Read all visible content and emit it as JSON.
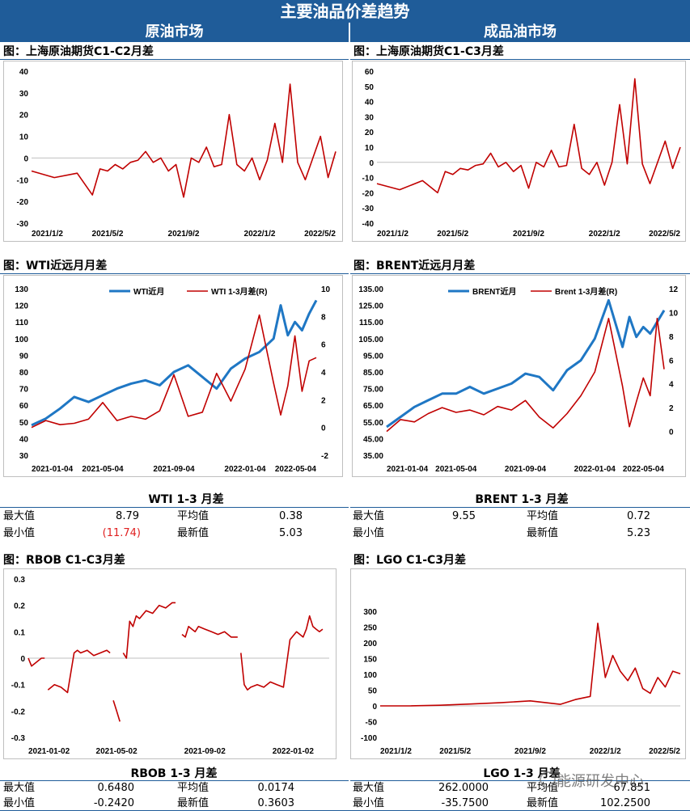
{
  "header": {
    "title": "主要油品价差趋势",
    "left_market": "原油市场",
    "right_market": "成品油市场"
  },
  "colors": {
    "red": "#c00000",
    "blue": "#1f77c4",
    "header_bg": "#1f5c99"
  },
  "sections": {
    "c1c2": {
      "title": "图：上海原油期货C1-C2月差"
    },
    "c1c3": {
      "title": "图：上海原油期货C1-C3月差"
    },
    "wti": {
      "title": "图：WTI近远月月差"
    },
    "brent": {
      "title": "图：BRENT近远月月差"
    },
    "rbob": {
      "title": "图：RBOB C1-C3月差"
    },
    "lgo": {
      "title": "图：LGO C1-C3月差"
    }
  },
  "stats": {
    "wti": {
      "title": "WTI 1-3 月差",
      "max_label": "最大值",
      "max": "8.79",
      "avg_label": "平均值",
      "avg": "0.38",
      "min_label": "最小值",
      "min": "(11.74)",
      "latest_label": "最新值",
      "latest": "5.03"
    },
    "brent": {
      "title": "BRENT 1-3 月差",
      "max_label": "最大值",
      "max": "9.55",
      "avg_label": "平均值",
      "avg": "0.72",
      "min_label": "最小值",
      "min": "",
      "latest_label": "最新值",
      "latest": "5.23"
    },
    "rbob": {
      "title": "RBOB 1-3 月差",
      "max_label": "最大值",
      "max": "0.6480",
      "avg_label": "平均值",
      "avg": "0.0174",
      "min_label": "最小值",
      "min": "-0.2420",
      "latest_label": "最新值",
      "latest": "0.3603"
    },
    "lgo": {
      "title": "LGO 1-3 月差",
      "max_label": "最大值",
      "max": "262.0000",
      "avg_label": "平均值",
      "avg": "67.851",
      "min_label": "最小值",
      "min": "-35.7500",
      "latest_label": "最新值",
      "latest": "102.2500"
    }
  },
  "watermark": {
    "text": "能源研发中心"
  },
  "chart_data": [
    {
      "id": "c1c2",
      "type": "line",
      "title": "图：上海原油期货C1-C2月差",
      "ylim": [
        -30,
        40
      ],
      "yticks": [
        40,
        30,
        20,
        10,
        0,
        -10,
        -20,
        -30
      ],
      "xticks": [
        "2021/1/2",
        "2021/5/2",
        "2021/9/2",
        "2022/1/2",
        "2022/5/2"
      ],
      "series": [
        {
          "color": "#c00000",
          "x": [
            0,
            3,
            6,
            8,
            9,
            10,
            11,
            12,
            13,
            14,
            15,
            16,
            17,
            18,
            19,
            20,
            21,
            22,
            23,
            24,
            25,
            26,
            27,
            28,
            29,
            30,
            31,
            32,
            33,
            34,
            35,
            36,
            37,
            38,
            39,
            40
          ],
          "y": [
            -6,
            -9,
            -7,
            -17,
            -5,
            -6,
            -3,
            -5,
            -2,
            -1,
            3,
            -2,
            0,
            -6,
            -3,
            -18,
            0,
            -2,
            5,
            -4,
            -3,
            20,
            -3,
            -6,
            0,
            -10,
            -1,
            16,
            -2,
            34,
            -2,
            -10,
            0,
            10,
            -9,
            3
          ]
        }
      ]
    },
    {
      "id": "c1c3",
      "type": "line",
      "title": "图：上海原油期货C1-C3月差",
      "ylim": [
        -40,
        60
      ],
      "yticks": [
        60,
        50,
        40,
        30,
        20,
        10,
        0,
        -10,
        -20,
        -30,
        -40
      ],
      "xticks": [
        "2021/1/2",
        "2021/5/2",
        "2021/9/2",
        "2022/1/2",
        "2022/5/2"
      ],
      "series": [
        {
          "color": "#c00000",
          "x": [
            0,
            3,
            6,
            8,
            9,
            10,
            11,
            12,
            13,
            14,
            15,
            16,
            17,
            18,
            19,
            20,
            21,
            22,
            23,
            24,
            25,
            26,
            27,
            28,
            29,
            30,
            31,
            32,
            33,
            34,
            35,
            36,
            37,
            38,
            39,
            40
          ],
          "y": [
            -14,
            -18,
            -12,
            -20,
            -6,
            -8,
            -4,
            -5,
            -2,
            -1,
            6,
            -3,
            0,
            -6,
            -2,
            -17,
            0,
            -3,
            8,
            -3,
            -2,
            25,
            -4,
            -8,
            0,
            -15,
            0,
            38,
            -1,
            55,
            -1,
            -14,
            0,
            14,
            -4,
            10
          ]
        }
      ]
    },
    {
      "id": "wti",
      "type": "line",
      "dual_axis": true,
      "title": "图：WTI近远月月差",
      "ylim": [
        30,
        130
      ],
      "yticks": [
        130,
        120,
        110,
        100,
        90,
        80,
        70,
        60,
        50,
        40,
        30
      ],
      "y2lim": [
        -2,
        10
      ],
      "y2ticks": [
        10,
        8,
        6,
        4,
        2,
        0,
        -2
      ],
      "xticks": [
        "2021-01-04",
        "2021-05-04",
        "2021-09-04",
        "2022-01-04",
        "2022-05-04"
      ],
      "legend": [
        "WTI近月",
        "WTI 1-3月差(R)"
      ],
      "series": [
        {
          "name": "WTI近月",
          "axis": "left",
          "color": "#1f77c4",
          "x": [
            0,
            2,
            4,
            6,
            8,
            10,
            12,
            14,
            16,
            18,
            20,
            22,
            24,
            26,
            28,
            30,
            32,
            34,
            35,
            36,
            37,
            38,
            39,
            40
          ],
          "y": [
            48,
            52,
            58,
            65,
            62,
            66,
            70,
            73,
            75,
            72,
            80,
            84,
            77,
            70,
            82,
            88,
            92,
            100,
            120,
            102,
            110,
            105,
            115,
            123
          ]
        },
        {
          "name": "WTI 1-3月差(R)",
          "axis": "right",
          "color": "#c00000",
          "x": [
            0,
            2,
            4,
            6,
            8,
            10,
            12,
            14,
            16,
            18,
            20,
            22,
            24,
            26,
            28,
            30,
            32,
            34,
            35,
            36,
            37,
            38,
            39,
            40
          ],
          "y": [
            0,
            0.5,
            0.2,
            0.3,
            0.6,
            1.8,
            0.5,
            0.8,
            0.6,
            1.2,
            3.8,
            0.8,
            1.1,
            3.9,
            1.9,
            4.2,
            8.1,
            3.2,
            0.9,
            3,
            6.6,
            2.6,
            4.8,
            5.03
          ]
        }
      ]
    },
    {
      "id": "brent",
      "type": "line",
      "dual_axis": true,
      "title": "图：BRENT近远月月差",
      "ylim": [
        35,
        135
      ],
      "yticks": [
        "135.00",
        "125.00",
        "115.00",
        "105.00",
        "95.00",
        "85.00",
        "75.00",
        "65.00",
        "55.00",
        "45.00",
        "35.00"
      ],
      "y2lim": [
        -2,
        12
      ],
      "y2ticks": [
        12,
        10,
        8,
        6,
        4,
        2,
        0
      ],
      "xticks": [
        "2021-01-04",
        "2021-05-04",
        "2021-09-04",
        "2022-01-04",
        "2022-05-04"
      ],
      "legend": [
        "BRENT近月",
        "Brent 1-3月差(R)"
      ],
      "series": [
        {
          "name": "BRENT近月",
          "axis": "left",
          "color": "#1f77c4",
          "x": [
            0,
            2,
            4,
            6,
            8,
            10,
            12,
            14,
            16,
            18,
            20,
            22,
            24,
            26,
            28,
            30,
            32,
            34,
            35,
            36,
            37,
            38,
            39,
            40
          ],
          "y": [
            52,
            58,
            64,
            68,
            72,
            72,
            76,
            72,
            75,
            78,
            84,
            82,
            74,
            86,
            92,
            105,
            128,
            100,
            118,
            106,
            112,
            108,
            115,
            122
          ]
        },
        {
          "name": "Brent 1-3月差(R)",
          "axis": "right",
          "color": "#c00000",
          "x": [
            0,
            2,
            4,
            6,
            8,
            10,
            12,
            14,
            16,
            18,
            20,
            22,
            24,
            26,
            28,
            30,
            32,
            34,
            35,
            36,
            37,
            38,
            39,
            40
          ],
          "y": [
            0,
            1,
            0.8,
            1.5,
            2,
            1.6,
            1.8,
            1.4,
            2.1,
            1.8,
            2.6,
            1.2,
            0.3,
            1.5,
            3,
            5,
            9.5,
            3.8,
            0.4,
            2.5,
            4.5,
            3,
            9.5,
            5.23
          ]
        }
      ]
    },
    {
      "id": "rbob",
      "type": "line",
      "title": "图：RBOB C1-C3月差",
      "ylim": [
        -0.3,
        0.3
      ],
      "yticks": [
        "0.3",
        "0.2",
        "0.1",
        "0",
        "-0.1",
        "-0.2",
        "-0.3"
      ],
      "xticks": [
        "2021-01-02",
        "2021-05-02",
        "2021-09-02",
        "2022-01-02"
      ],
      "series": [
        {
          "color": "#c00000",
          "segments": [
            {
              "x": [
                0,
                1,
                2,
                3,
                4,
                5
              ],
              "y": [
                0,
                -0.03,
                -0.02,
                -0.01,
                0.0,
                0.0
              ]
            },
            {
              "x": [
                6,
                8,
                10,
                12,
                14,
                15,
                16,
                18,
                20,
                22,
                24,
                25
              ],
              "y": [
                -0.12,
                -0.1,
                -0.11,
                -0.13,
                0.02,
                0.03,
                0.02,
                0.03,
                0.01,
                0.02,
                0.03,
                0.02
              ]
            },
            {
              "x": [
                26,
                27,
                28
              ],
              "y": [
                -0.16,
                -0.2,
                -0.24
              ]
            },
            {
              "x": [
                29,
                30,
                31,
                32,
                33,
                34,
                36,
                38,
                40,
                42,
                44,
                45
              ],
              "y": [
                0.02,
                0.0,
                0.14,
                0.12,
                0.16,
                0.15,
                0.18,
                0.17,
                0.2,
                0.19,
                0.21,
                0.21
              ]
            },
            {
              "x": [
                47,
                48,
                49,
                50,
                51,
                52,
                54,
                56,
                58,
                60,
                62,
                64
              ],
              "y": [
                0.09,
                0.08,
                0.12,
                0.11,
                0.1,
                0.12,
                0.11,
                0.1,
                0.09,
                0.1,
                0.08,
                0.08
              ]
            },
            {
              "x": [
                65,
                66,
                67,
                68,
                70,
                72,
                74,
                76,
                78,
                80,
                82,
                84,
                85,
                86,
                87,
                88,
                89,
                90
              ],
              "y": [
                0.02,
                -0.1,
                -0.12,
                -0.11,
                -0.1,
                -0.11,
                -0.09,
                -0.1,
                -0.11,
                0.07,
                0.1,
                0.08,
                0.11,
                0.16,
                0.12,
                0.11,
                0.1,
                0.11
              ]
            }
          ]
        }
      ]
    },
    {
      "id": "lgo",
      "type": "line",
      "title": "图：LGO C1-C3月差",
      "ylim": [
        -100,
        300
      ],
      "yticks": [
        300,
        250,
        200,
        150,
        100,
        50,
        0,
        -50,
        -100
      ],
      "xticks": [
        "2021/1/2",
        "2021/5/2",
        "2021/9/2",
        "2022/1/2",
        "2022/5/2"
      ],
      "series": [
        {
          "color": "#c00000",
          "x": [
            0,
            4,
            8,
            12,
            16,
            20,
            24,
            26,
            28,
            29,
            30,
            31,
            32,
            33,
            34,
            35,
            36,
            37,
            38,
            39,
            40
          ],
          "y": [
            0,
            0,
            2,
            6,
            10,
            16,
            5,
            20,
            30,
            262,
            90,
            160,
            110,
            80,
            120,
            55,
            40,
            90,
            60,
            110,
            102
          ]
        }
      ]
    }
  ]
}
